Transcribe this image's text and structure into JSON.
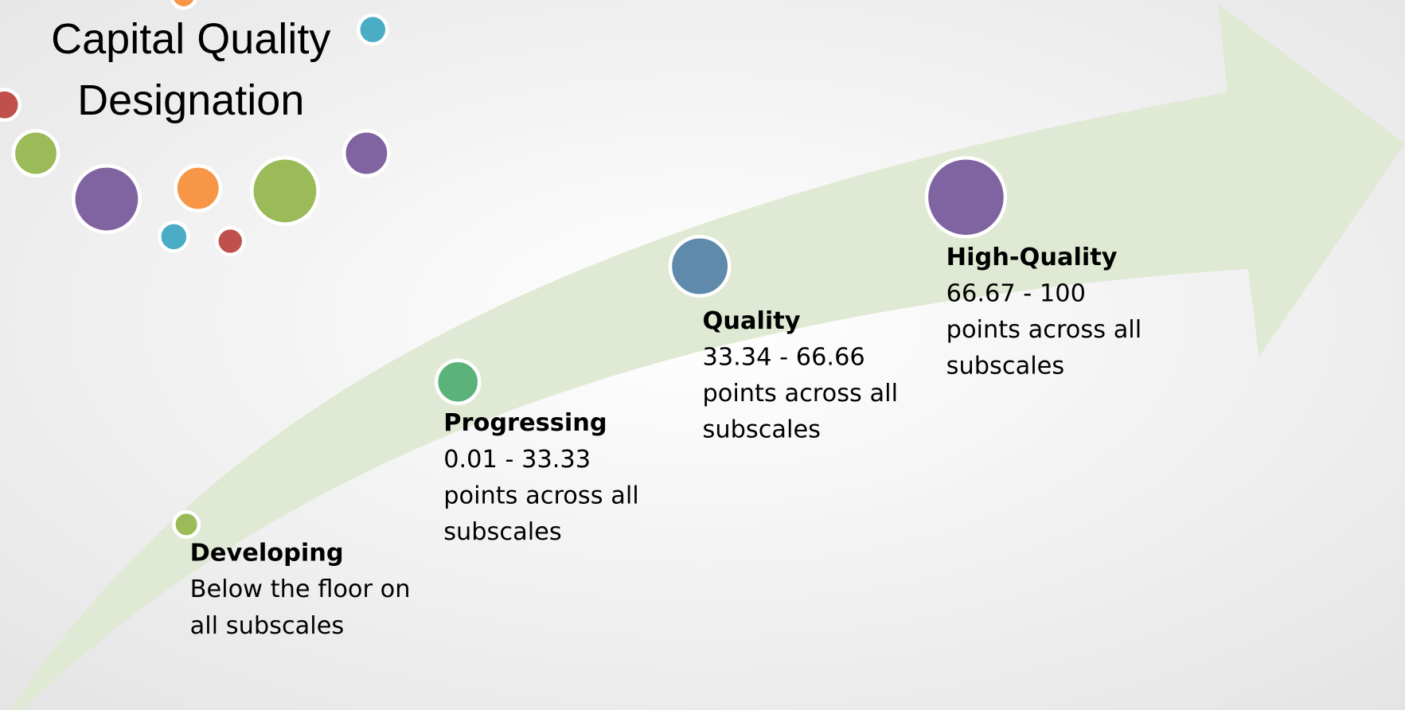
{
  "title": {
    "lines": [
      "Capital Quality",
      "Designation"
    ]
  },
  "steps": [
    {
      "label": "Developing",
      "lines": [
        "Below the floor on",
        "all subscales"
      ]
    },
    {
      "label": "Progressing",
      "lines": [
        "0.01 - 33.33",
        "points across all",
        "subscales"
      ]
    },
    {
      "label": "Quality",
      "lines": [
        "33.34 - 66.66",
        "points across all",
        "subscales"
      ]
    },
    {
      "label": "High-Quality",
      "lines": [
        "66.67 - 100",
        "points across all",
        "subscales"
      ]
    }
  ]
}
